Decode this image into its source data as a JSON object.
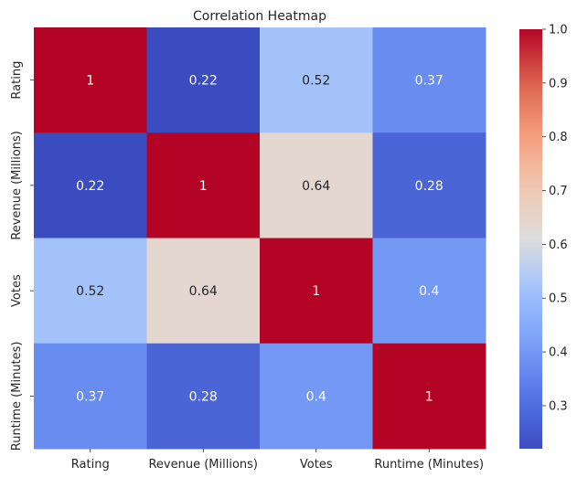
{
  "chart_data": {
    "type": "heatmap",
    "title": "Correlation Heatmap",
    "xlabel": "",
    "ylabel": "",
    "rows": [
      "Rating",
      "Revenue (Millions)",
      "Votes",
      "Runtime (Minutes)"
    ],
    "columns": [
      "Rating",
      "Revenue (Millions)",
      "Votes",
      "Runtime (Minutes)"
    ],
    "values": [
      [
        1,
        0.22,
        0.52,
        0.37
      ],
      [
        0.22,
        1,
        0.64,
        0.28
      ],
      [
        0.52,
        0.64,
        1,
        0.4
      ],
      [
        0.37,
        0.28,
        0.4,
        1
      ]
    ],
    "cell_labels": [
      [
        "1",
        "0.22",
        "0.52",
        "0.37"
      ],
      [
        "0.22",
        "1",
        "0.64",
        "0.28"
      ],
      [
        "0.52",
        "0.64",
        "1",
        "0.4"
      ],
      [
        "0.37",
        "0.28",
        "0.4",
        "1"
      ]
    ],
    "colormap": "coolwarm",
    "vmin": 0.22,
    "vmax": 1.0,
    "colorbar": {
      "ticks": [
        0.3,
        0.4,
        0.5,
        0.6,
        0.7,
        0.8,
        0.9,
        1.0
      ],
      "tick_labels": [
        "0.3",
        "0.4",
        "0.5",
        "0.6",
        "0.7",
        "0.8",
        "0.9",
        "1.0"
      ]
    },
    "colors": {
      "low": "#3b4cc0",
      "mid": "#dddddd",
      "high": "#b40426",
      "text_dark": "#262626",
      "text_light": "#ffffff"
    }
  }
}
